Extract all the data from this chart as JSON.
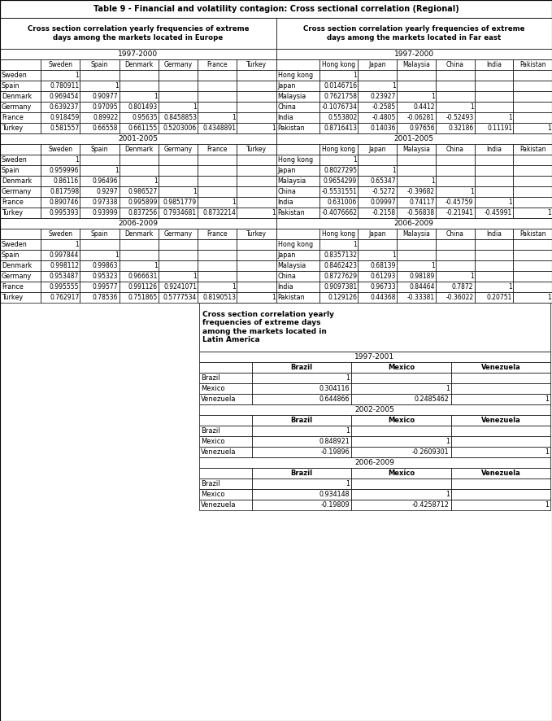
{
  "title": "Table 9 - Financial and volatility contagion: Cross sectional correlation (Regional)",
  "europe_header": "Cross section correlation yearly frequencies of extreme\ndays among the markets located in Europe",
  "fareast_header": "Cross section correlation yearly frequencies of extreme\ndays among the markets located in Far east",
  "latin_header": "Cross section correlation yearly\nfrequencies of extreme days\namong the markets located in\nLatin America",
  "europe_cols": [
    "",
    "Sweden",
    "Spain",
    "Denmark",
    "Germany",
    "France",
    "Turkey"
  ],
  "fareast_cols": [
    "",
    "Hong kong",
    "Japan",
    "Malaysia",
    "China",
    "India",
    "Pakistan"
  ],
  "latin_cols": [
    "",
    "Brazil",
    "Mexico",
    "Venezuela"
  ],
  "europe_1997": {
    "period": "1997-2000",
    "rows": [
      [
        "Sweden",
        "1",
        "",
        "",
        "",
        "",
        ""
      ],
      [
        "Spain",
        "0.780911",
        "1",
        "",
        "",
        "",
        ""
      ],
      [
        "Denmark",
        "0.969454",
        "0.90977",
        "1",
        "",
        "",
        ""
      ],
      [
        "Germany",
        "0.639237",
        "0.97095",
        "0.801493",
        "1",
        "",
        ""
      ],
      [
        "France",
        "0.918459",
        "0.89922",
        "0.95635",
        "0.8458853",
        "1",
        ""
      ],
      [
        "Turkey",
        "0.581557",
        "0.66558",
        "0.661155",
        "0.5203006",
        "0.4348891",
        "1"
      ]
    ]
  },
  "europe_2001": {
    "period": "2001-2005",
    "rows": [
      [
        "Sweden",
        "1",
        "",
        "",
        "",
        "",
        ""
      ],
      [
        "Spain",
        "0.959996",
        "1",
        "",
        "",
        "",
        ""
      ],
      [
        "Denmark",
        "0.86116",
        "0.96496",
        "1",
        "",
        "",
        ""
      ],
      [
        "Germany",
        "0.817598",
        "0.9297",
        "0.986527",
        "1",
        "",
        ""
      ],
      [
        "France",
        "0.890746",
        "0.97338",
        "0.995899",
        "0.9851779",
        "1",
        ""
      ],
      [
        "Turkey",
        "0.995393",
        "0.93999",
        "0.837256",
        "0.7934681",
        "0.8732214",
        "1"
      ]
    ]
  },
  "europe_2006": {
    "period": "2006-2009",
    "rows": [
      [
        "Sweden",
        "1",
        "",
        "",
        "",
        "",
        ""
      ],
      [
        "Spain",
        "0.997844",
        "1",
        "",
        "",
        "",
        ""
      ],
      [
        "Denmark",
        "0.998112",
        "0.99863",
        "1",
        "",
        "",
        ""
      ],
      [
        "Germany",
        "0.953487",
        "0.95323",
        "0.966631",
        "1",
        "",
        ""
      ],
      [
        "France",
        "0.995555",
        "0.99577",
        "0.991126",
        "0.9241071",
        "1",
        ""
      ],
      [
        "Turkey",
        "0.762917",
        "0.78536",
        "0.751865",
        "0.5777534",
        "0.8190513",
        "1"
      ]
    ]
  },
  "fareast_1997": {
    "period": "1997-2000",
    "rows": [
      [
        "Hong kong",
        "1",
        "",
        "",
        "",
        "",
        ""
      ],
      [
        "Japan",
        "0.0146716",
        "1",
        "",
        "",
        "",
        ""
      ],
      [
        "Malaysia",
        "0.7621758",
        "0.23927",
        "1",
        "",
        "",
        ""
      ],
      [
        "China",
        "-0.1076734",
        "-0.2585",
        "0.4412",
        "1",
        "",
        ""
      ],
      [
        "India",
        "0.553802",
        "-0.4805",
        "-0.06281",
        "-0.52493",
        "1",
        ""
      ],
      [
        "Pakistan",
        "0.8716413",
        "0.14036",
        "0.97656",
        "0.32186",
        "0.11191",
        "1"
      ]
    ]
  },
  "fareast_2001": {
    "period": "2001-2005",
    "rows": [
      [
        "Hong kong",
        "1",
        "",
        "",
        "",
        "",
        ""
      ],
      [
        "Japan",
        "0.8027295",
        "1",
        "",
        "",
        "",
        ""
      ],
      [
        "Malaysia",
        "0.9654299",
        "0.65347",
        "1",
        "",
        "",
        ""
      ],
      [
        "China",
        "-0.5531551",
        "-0.5272",
        "-0.39682",
        "1",
        "",
        ""
      ],
      [
        "India",
        "0.631006",
        "0.09997",
        "0.74117",
        "-0.45759",
        "1",
        ""
      ],
      [
        "Pakistan",
        "-0.4076662",
        "-0.2158",
        "-0.56838",
        "-0.21941",
        "-0.45991",
        "1"
      ]
    ]
  },
  "fareast_2006": {
    "period": "2006-2009",
    "rows": [
      [
        "Hong kong",
        "1",
        "",
        "",
        "",
        "",
        ""
      ],
      [
        "Japan",
        "0.8357132",
        "1",
        "",
        "",
        "",
        ""
      ],
      [
        "Malaysia",
        "0.8462423",
        "0.68139",
        "1",
        "",
        "",
        ""
      ],
      [
        "China",
        "0.8727629",
        "0.61293",
        "0.98189",
        "1",
        "",
        ""
      ],
      [
        "India",
        "0.9097381",
        "0.96733",
        "0.84464",
        "0.7872",
        "1",
        ""
      ],
      [
        "Pakistan",
        "0.129126",
        "0.44368",
        "-0.33381",
        "-0.36022",
        "0.20751",
        "1"
      ]
    ]
  },
  "latin_1997": {
    "period": "1997-2001",
    "rows": [
      [
        "Brazil",
        "1",
        "",
        ""
      ],
      [
        "Mexico",
        "0.304116",
        "1",
        ""
      ],
      [
        "Venezuela",
        "0.644866",
        "0.2485462",
        "1"
      ]
    ]
  },
  "latin_2002": {
    "period": "2002-2005",
    "rows": [
      [
        "Brazil",
        "1",
        "",
        ""
      ],
      [
        "Mexico",
        "0.848921",
        "1",
        ""
      ],
      [
        "Venezuela",
        "-0.19896",
        "-0.2609301",
        "1"
      ]
    ]
  },
  "latin_2006": {
    "period": "2006-2009",
    "rows": [
      [
        "Brazil",
        "1",
        "",
        ""
      ],
      [
        "Mexico",
        "0.934148",
        "1",
        ""
      ],
      [
        "Venezuela",
        "-0.19809",
        "-0.4258712",
        "1"
      ]
    ]
  }
}
